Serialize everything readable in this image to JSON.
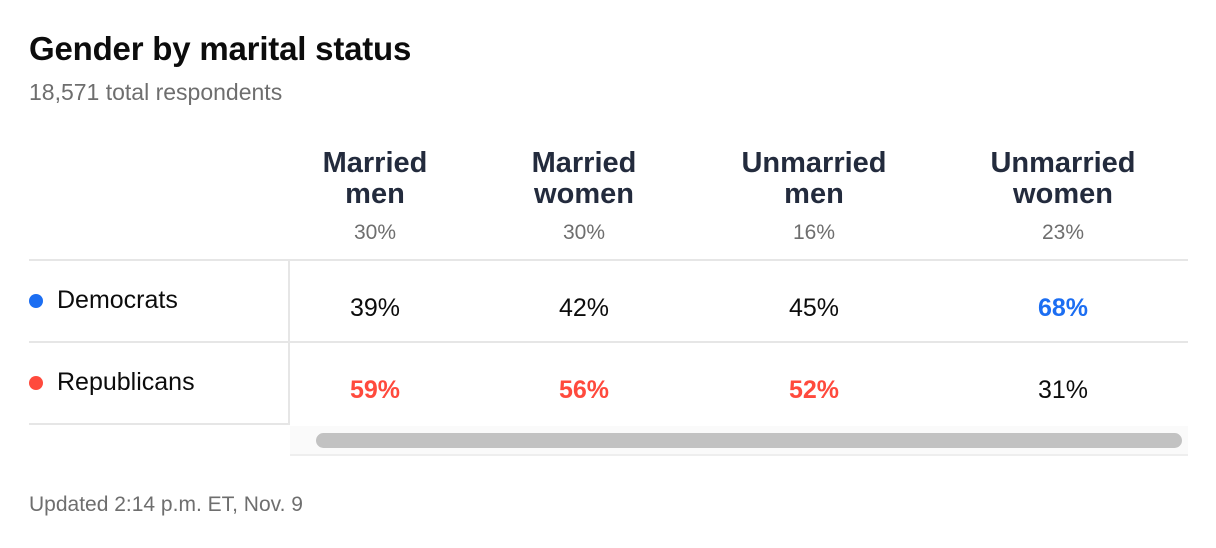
{
  "title": "Gender by marital status",
  "subtitle": "18,571 total respondents",
  "footer": "Updated 2:14 p.m. ET, Nov. 9",
  "colors": {
    "democrat": "#1c6ef2",
    "republican": "#ff4a3d",
    "text": "#0c0c0c",
    "muted": "#6e6e6e"
  },
  "chart_data": {
    "type": "table",
    "title": "Gender by marital status",
    "subtitle": "18,571 total respondents",
    "columns": [
      {
        "name": "Married\nmen",
        "share": "30%"
      },
      {
        "name": "Married\nwomen",
        "share": "30%"
      },
      {
        "name": "Unmarried\nmen",
        "share": "16%"
      },
      {
        "name": "Unmarried\nwomen",
        "share": "23%"
      }
    ],
    "rows": [
      {
        "name": "Democrats",
        "dot_color": "#1c6ef2",
        "values": [
          "39%",
          "42%",
          "45%",
          "68%"
        ],
        "winner": [
          false,
          false,
          false,
          true
        ]
      },
      {
        "name": "Republicans",
        "dot_color": "#ff4a3d",
        "values": [
          "59%",
          "56%",
          "52%",
          "31%"
        ],
        "winner": [
          true,
          true,
          true,
          false
        ]
      }
    ]
  }
}
